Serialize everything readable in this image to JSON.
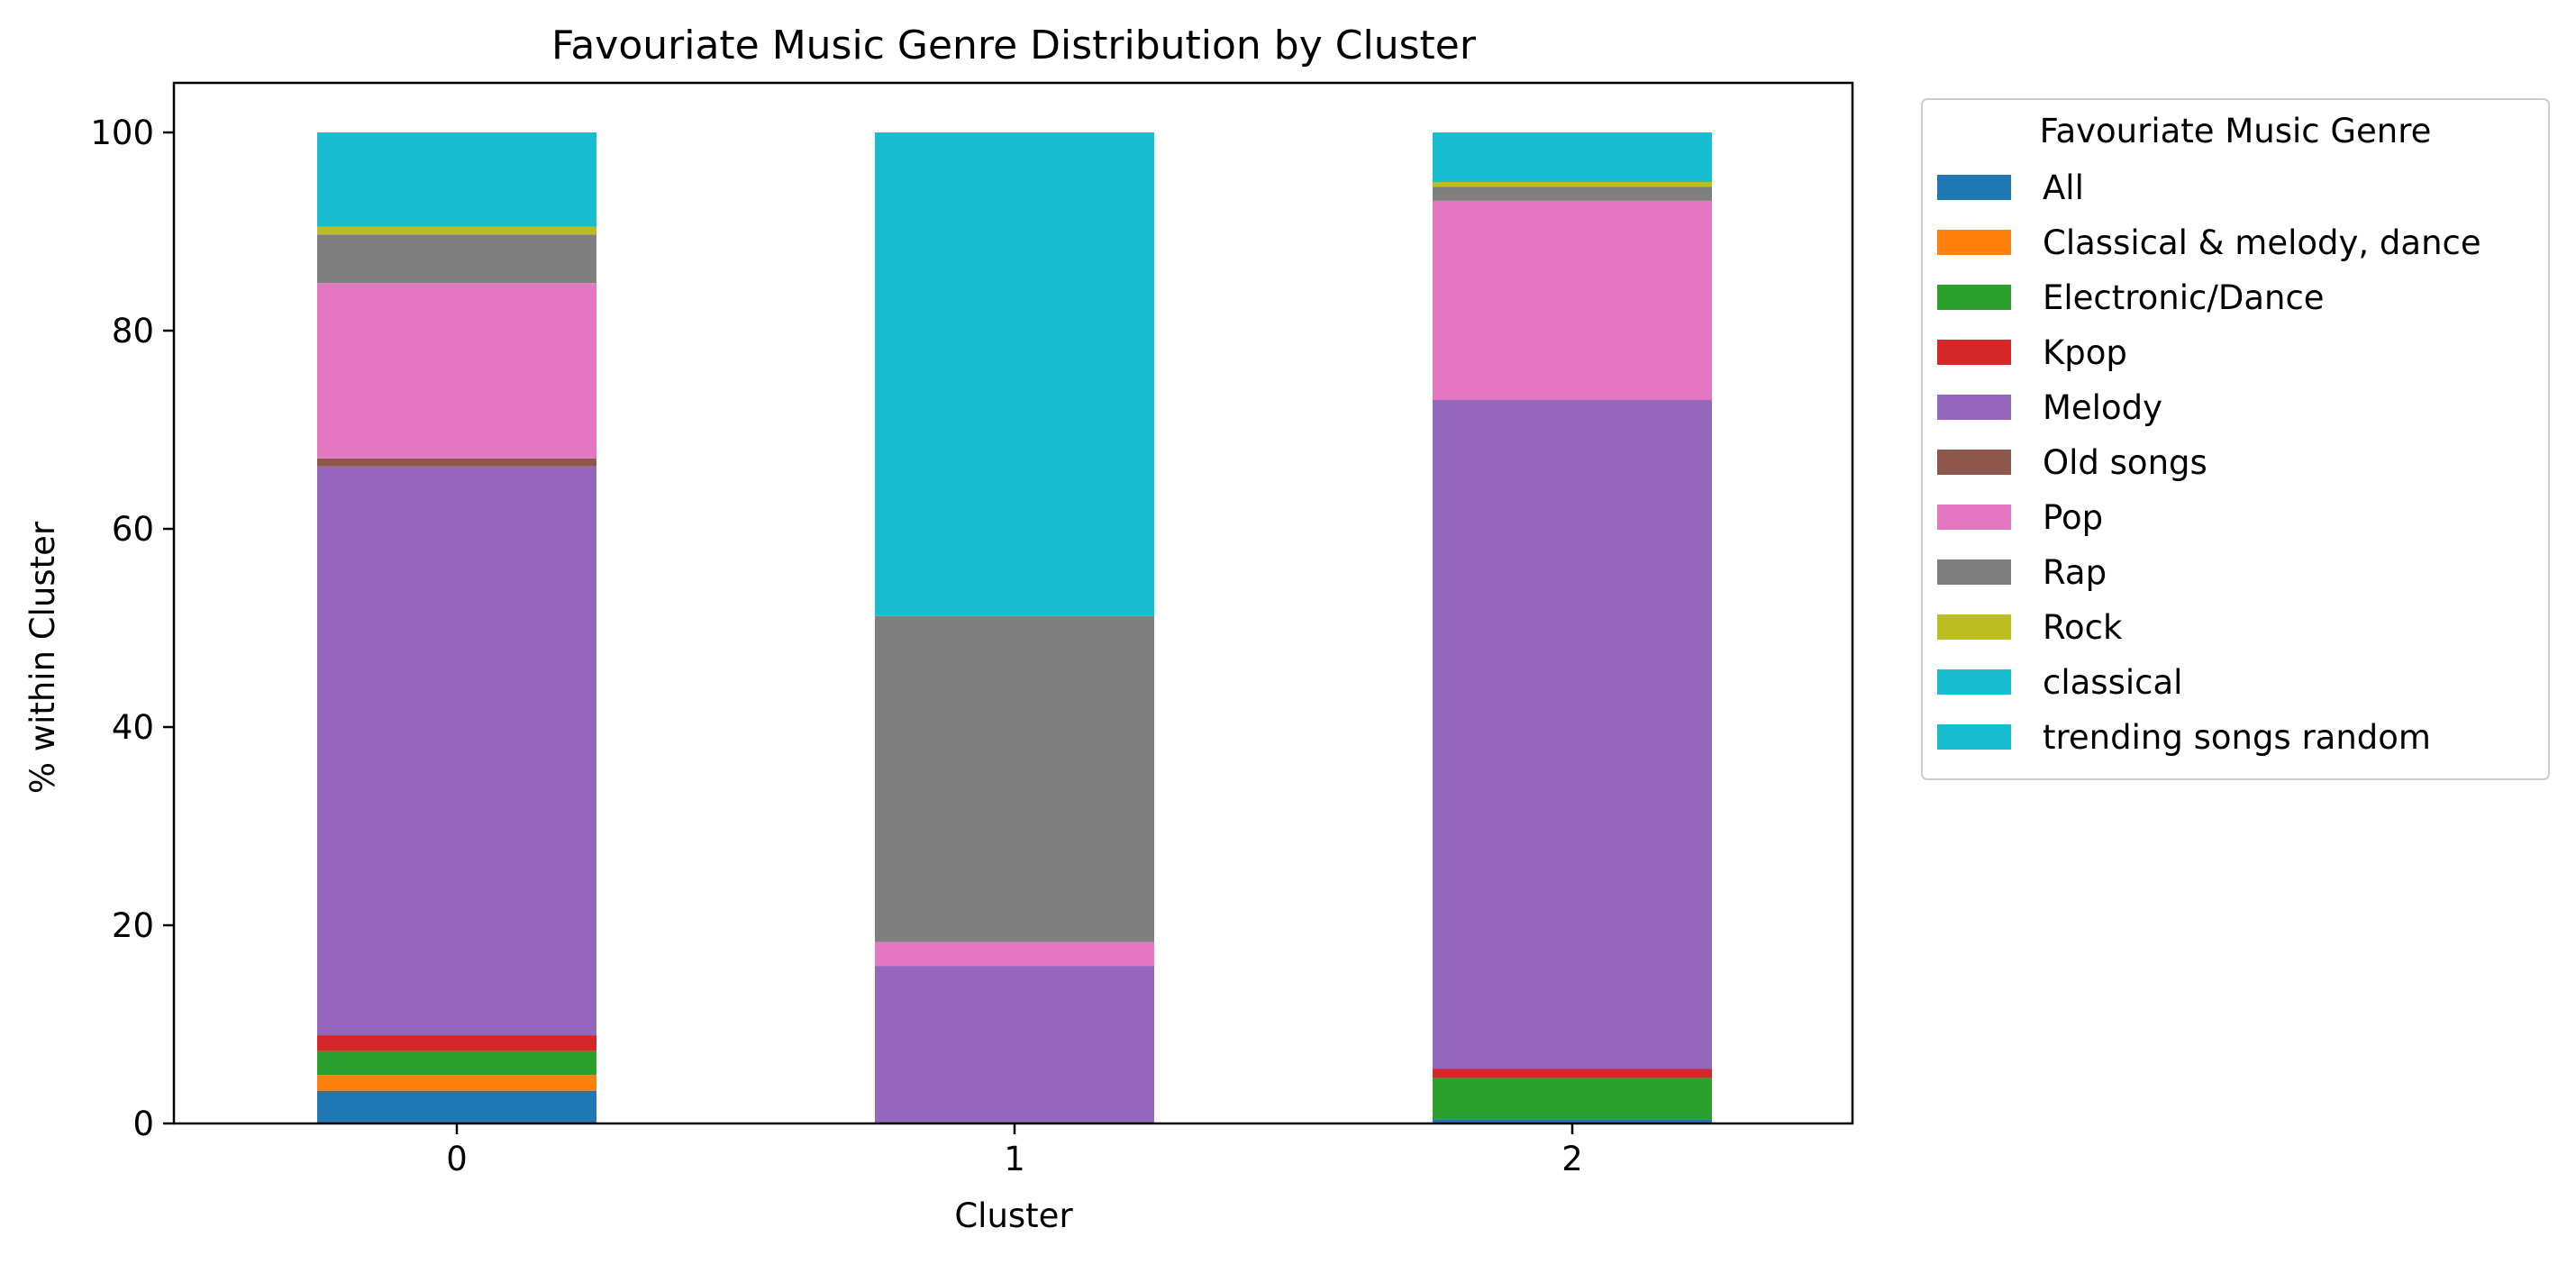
{
  "chart_data": {
    "type": "bar",
    "stacked": true,
    "title": "Favouriate Music Genre Distribution by Cluster",
    "xlabel": "Cluster",
    "ylabel": "% within Cluster",
    "categories": [
      "0",
      "1",
      "2"
    ],
    "ylim": [
      0,
      105
    ],
    "yticks": [
      "0",
      "20",
      "40",
      "60",
      "80",
      "100"
    ],
    "legend": {
      "title": "Favouriate Music Genre",
      "placement": "outside-right-top"
    },
    "series": [
      {
        "name": "All",
        "color": "#1f77b4",
        "values": [
          3.3,
          0,
          0.4
        ]
      },
      {
        "name": "Classical & melody, dance",
        "color": "#ff7f0e",
        "values": [
          1.6,
          0,
          0
        ]
      },
      {
        "name": "Electronic/Dance",
        "color": "#2ca02c",
        "values": [
          2.4,
          0,
          4.2
        ]
      },
      {
        "name": "Kpop",
        "color": "#d62728",
        "values": [
          1.6,
          0,
          0.9
        ]
      },
      {
        "name": "Melody",
        "color": "#9467bd",
        "values": [
          57.4,
          15.9,
          67.5
        ]
      },
      {
        "name": "Old songs",
        "color": "#8c564b",
        "values": [
          0.8,
          0,
          0
        ]
      },
      {
        "name": "Pop",
        "color": "#e377c2",
        "values": [
          17.7,
          2.4,
          20.1
        ]
      },
      {
        "name": "Rap",
        "color": "#7f7f7f",
        "values": [
          4.9,
          32.9,
          1.4
        ]
      },
      {
        "name": "Rock",
        "color": "#bcbd22",
        "values": [
          0.8,
          0,
          0.5
        ]
      },
      {
        "name": "classical",
        "color": "#17becf",
        "values": [
          0,
          0,
          0
        ]
      },
      {
        "name": "trending songs random",
        "color": "#17becf",
        "values": [
          9.5,
          48.8,
          5.0
        ]
      }
    ]
  }
}
